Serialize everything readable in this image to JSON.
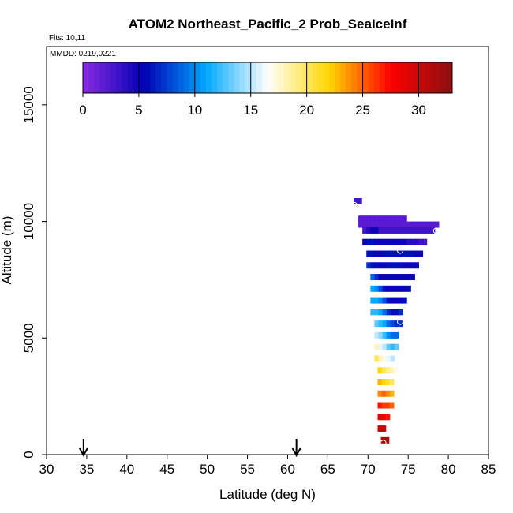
{
  "chart_data": {
    "type": "heatmap",
    "title": "ATOM2 Northeast_Pacific_2 Prob_SeaIceInf",
    "annotations": {
      "flights": "Flts: 10,11",
      "mmdd": "MMDD: 0219,0221"
    },
    "xlabel": "Latitude (deg N)",
    "ylabel": "Altitude (m)",
    "xlim": [
      30,
      85
    ],
    "ylim": [
      0,
      17500
    ],
    "x_ticks": [
      30,
      35,
      40,
      45,
      50,
      55,
      60,
      65,
      70,
      75,
      80,
      85
    ],
    "y_ticks": [
      0,
      5000,
      10000,
      15000
    ],
    "colorbar": {
      "range": [
        0,
        33
      ],
      "ticks": [
        0,
        5,
        10,
        15,
        20,
        25,
        30
      ],
      "colors": [
        "#8a2be2",
        "#0000b4",
        "#00a8ff",
        "#ffffff",
        "#ffd700",
        "#ff0000",
        "#8b1010"
      ]
    },
    "arrows_at_latitude": [
      34.6,
      61.1
    ],
    "cell_size": {
      "lat": 0.5,
      "alt": 250
    },
    "rows": [
      {
        "alt": 10750,
        "lat_start": 68.2,
        "values": [
          3,
          3
        ]
      },
      {
        "alt": 10000,
        "lat_start": 68.8,
        "values": [
          2,
          2,
          2,
          2,
          2,
          2,
          2,
          2,
          2,
          2,
          2,
          2
        ]
      },
      {
        "alt": 9750,
        "lat_start": 68.8,
        "values": [
          2,
          2,
          2,
          2,
          2,
          2,
          2,
          2,
          2,
          2,
          2,
          2,
          2,
          2,
          2,
          2,
          2,
          2,
          2,
          2
        ]
      },
      {
        "alt": 9500,
        "lat_start": 69.3,
        "values": [
          3,
          4,
          5,
          5,
          3,
          3,
          3,
          3,
          3,
          3,
          3,
          3,
          3,
          3,
          3,
          3,
          3,
          3
        ]
      },
      {
        "alt": 9000,
        "lat_start": 69.3,
        "values": [
          5,
          6,
          6,
          5,
          5,
          5,
          5,
          5,
          5,
          5,
          5,
          4,
          4,
          4,
          3,
          3
        ]
      },
      {
        "alt": 8500,
        "lat_start": 69.8,
        "values": [
          6,
          6,
          5,
          5,
          6,
          6,
          6,
          6,
          6,
          6,
          6,
          6,
          5,
          5
        ]
      },
      {
        "alt": 8000,
        "lat_start": 69.8,
        "values": [
          7,
          6,
          6,
          5,
          5,
          6,
          6,
          6,
          6,
          5,
          5,
          5,
          5
        ]
      },
      {
        "alt": 7500,
        "lat_start": 70.3,
        "values": [
          9,
          7,
          5,
          5,
          5,
          5,
          5,
          5,
          5,
          5,
          5
        ]
      },
      {
        "alt": 7000,
        "lat_start": 70.3,
        "values": [
          11,
          10,
          8,
          6,
          5,
          5,
          5,
          5,
          5,
          6
        ]
      },
      {
        "alt": 6500,
        "lat_start": 70.3,
        "values": [
          11,
          11,
          10,
          8,
          6,
          5,
          5,
          5,
          6
        ]
      },
      {
        "alt": 6000,
        "lat_start": 70.3,
        "values": [
          12,
          12,
          11,
          9,
          7,
          6,
          6,
          7
        ]
      },
      {
        "alt": 5500,
        "lat_start": 70.8,
        "values": [
          13,
          12,
          11,
          9,
          8,
          7,
          7
        ]
      },
      {
        "alt": 5000,
        "lat_start": 70.8,
        "values": [
          15,
          14,
          12,
          10,
          9,
          9
        ]
      },
      {
        "alt": 4500,
        "lat_start": 70.8,
        "values": [
          18,
          16,
          15,
          13,
          12,
          13
        ]
      },
      {
        "alt": 4000,
        "lat_start": 70.8,
        "values": [
          20,
          18,
          17,
          16,
          15
        ]
      },
      {
        "alt": 3500,
        "lat_start": 71.2,
        "values": [
          22,
          20,
          19,
          18,
          17
        ]
      },
      {
        "alt": 3000,
        "lat_start": 71.2,
        "values": [
          23,
          22,
          21,
          20
        ]
      },
      {
        "alt": 2500,
        "lat_start": 71.2,
        "values": [
          24,
          25,
          24,
          23
        ]
      },
      {
        "alt": 2000,
        "lat_start": 71.2,
        "values": [
          27,
          26,
          26,
          25
        ]
      },
      {
        "alt": 1500,
        "lat_start": 71.2,
        "values": [
          29,
          28,
          27
        ]
      },
      {
        "alt": 1000,
        "lat_start": 71.2,
        "values": [
          30,
          30
        ]
      },
      {
        "alt": 500,
        "lat_start": 71.6,
        "values": [
          31,
          32
        ]
      }
    ],
    "markers": [
      {
        "lat": 68.3,
        "alt": 10700
      },
      {
        "lat": 74.0,
        "alt": 8750
      },
      {
        "lat": 78.5,
        "alt": 9600
      },
      {
        "lat": 74.0,
        "alt": 5700
      },
      {
        "lat": 71.9,
        "alt": 500
      }
    ]
  }
}
